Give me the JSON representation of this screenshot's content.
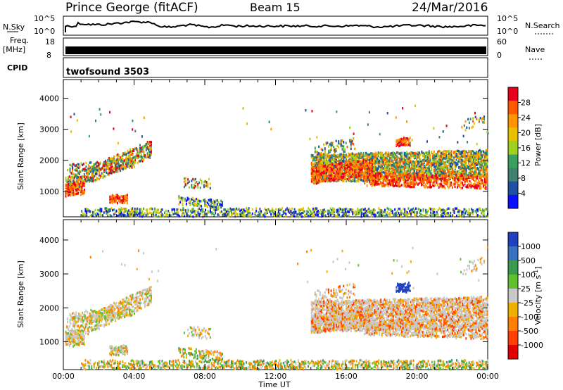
{
  "header": {
    "station": "Prince George (fitACF)",
    "beam": "Beam 15",
    "date": "24/Mar/2016"
  },
  "strip": {
    "nsky_label": "N.Sky",
    "nsky_ticks": [
      "10^5",
      "10^0"
    ],
    "nsearch_label": "N.Search",
    "nsearch_ticks": [
      "10^5",
      "10^0"
    ],
    "freq_label": "Freq.",
    "freq_unit": "[MHz]",
    "freq_ticks": [
      "18",
      "8"
    ],
    "nave_label": "Nave",
    "nave_ticks": [
      "60",
      "0"
    ],
    "cpid_label": "CPID",
    "cpid_value": "twofsound 3503"
  },
  "chart_data": [
    {
      "type": "heatmap",
      "name": "power-panel",
      "ylabel": "Slant Range [km]",
      "ylim": [
        180,
        4600
      ],
      "yticks": [
        1000,
        2000,
        3000,
        4000
      ],
      "xlabel": "Time UT",
      "xticks": [
        "00:00",
        "04:00",
        "08:00",
        "12:00",
        "16:00",
        "20:00",
        "00:00"
      ],
      "colorbar": {
        "label": "Power [dB]",
        "ticks": [
          "28",
          "24",
          "20",
          "16",
          "12",
          "8",
          "4"
        ],
        "colors": [
          "#e8001c",
          "#ff5a00",
          "#ff9500",
          "#e8c000",
          "#a0d020",
          "#3aa060",
          "#408070",
          "#2050a0",
          "#0a10ff"
        ]
      }
    },
    {
      "type": "heatmap",
      "name": "velocity-panel",
      "ylabel": "Slant Range [km]",
      "ylim": [
        180,
        4600
      ],
      "yticks": [
        1000,
        2000,
        3000,
        4000
      ],
      "xlabel": "Time UT",
      "xticks": [
        "00:00",
        "04:00",
        "08:00",
        "12:00",
        "16:00",
        "20:00",
        "00:00"
      ],
      "colorbar": {
        "label": "Velocity [m s",
        "label_exp": "-1",
        "label_close": "]",
        "ticks": [
          "1000",
          "500",
          "100",
          "25",
          "-25",
          "-100",
          "-500",
          "-1000"
        ],
        "colors": [
          "#2040c0",
          "#3a70c0",
          "#3a9a50",
          "#60c030",
          "#c8c8c8",
          "#f0b000",
          "#ff8000",
          "#ff4000",
          "#e00000"
        ]
      }
    }
  ]
}
